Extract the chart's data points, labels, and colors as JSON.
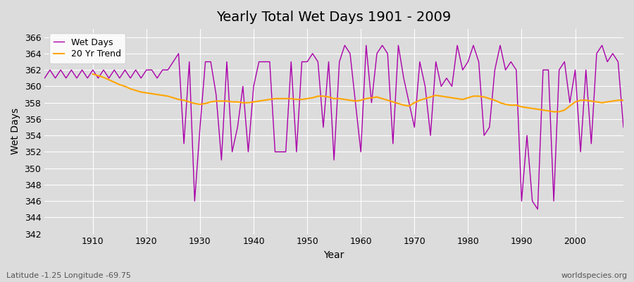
{
  "title": "Yearly Total Wet Days 1901 - 2009",
  "xlabel": "Year",
  "ylabel": "Wet Days",
  "subtitle_left": "Latitude -1.25 Longitude -69.75",
  "subtitle_right": "worldspecies.org",
  "ylim": [
    342,
    367
  ],
  "yticks": [
    342,
    344,
    346,
    348,
    350,
    352,
    354,
    356,
    358,
    360,
    362,
    364,
    366
  ],
  "bg_color": "#dcdcdc",
  "wet_days_color": "#aa00aa",
  "trend_color": "#ffa500",
  "legend_wet": "Wet Days",
  "legend_trend": "20 Yr Trend",
  "years": [
    1901,
    1902,
    1903,
    1904,
    1905,
    1906,
    1907,
    1908,
    1909,
    1910,
    1911,
    1912,
    1913,
    1914,
    1915,
    1916,
    1917,
    1918,
    1919,
    1920,
    1921,
    1922,
    1923,
    1924,
    1925,
    1926,
    1927,
    1928,
    1929,
    1930,
    1931,
    1932,
    1933,
    1934,
    1935,
    1936,
    1937,
    1938,
    1939,
    1940,
    1941,
    1942,
    1943,
    1944,
    1945,
    1946,
    1947,
    1948,
    1949,
    1950,
    1951,
    1952,
    1953,
    1954,
    1955,
    1956,
    1957,
    1958,
    1959,
    1960,
    1961,
    1962,
    1963,
    1964,
    1965,
    1966,
    1967,
    1968,
    1969,
    1970,
    1971,
    1972,
    1973,
    1974,
    1975,
    1976,
    1977,
    1978,
    1979,
    1980,
    1981,
    1982,
    1983,
    1984,
    1985,
    1986,
    1987,
    1988,
    1989,
    1990,
    1991,
    1992,
    1993,
    1994,
    1995,
    1996,
    1997,
    1998,
    1999,
    2000,
    2001,
    2002,
    2003,
    2004,
    2005,
    2006,
    2007,
    2008,
    2009
  ],
  "wet_days": [
    361,
    362,
    361,
    362,
    361,
    362,
    361,
    362,
    361,
    362,
    361,
    362,
    361,
    362,
    361,
    362,
    361,
    362,
    361,
    362,
    362,
    361,
    362,
    362,
    363,
    364,
    353,
    363,
    346,
    355,
    363,
    363,
    359,
    351,
    363,
    352,
    355,
    360,
    352,
    360,
    363,
    363,
    363,
    352,
    352,
    352,
    363,
    352,
    363,
    363,
    364,
    363,
    355,
    363,
    351,
    363,
    365,
    364,
    358,
    352,
    365,
    358,
    364,
    365,
    364,
    353,
    365,
    361,
    358,
    355,
    363,
    360,
    354,
    363,
    360,
    361,
    360,
    365,
    362,
    363,
    365,
    363,
    354,
    355,
    362,
    365,
    362,
    363,
    362,
    346,
    354,
    346,
    345,
    362,
    362,
    346,
    362,
    363,
    358,
    362,
    352,
    362,
    353,
    364,
    365,
    363,
    364,
    363,
    355
  ],
  "trend_years": [
    1910,
    1911,
    1912,
    1913,
    1914,
    1915,
    1916,
    1917,
    1918,
    1919,
    1920,
    1921,
    1922,
    1923,
    1924,
    1925,
    1926,
    1927,
    1928,
    1929,
    1930,
    1931,
    1932,
    1933,
    1934,
    1935,
    1936,
    1937,
    1938,
    1939,
    1940,
    1941,
    1942,
    1943,
    1944,
    1945,
    1946,
    1947,
    1948,
    1949,
    1950,
    1951,
    1952,
    1953,
    1954,
    1955,
    1956,
    1957,
    1958,
    1959,
    1960,
    1961,
    1962,
    1963,
    1964,
    1965,
    1966,
    1967,
    1968,
    1969,
    1970,
    1971,
    1972,
    1973,
    1974,
    1975,
    1976,
    1977,
    1978,
    1979,
    1980,
    1981,
    1982,
    1983,
    1984,
    1985,
    1986,
    1987,
    1988,
    1989,
    1990,
    1991,
    1992,
    1993,
    1994,
    1995,
    1996,
    1997,
    1998,
    1999,
    2000,
    2001,
    2002,
    2003,
    2004,
    2005,
    2006,
    2007,
    2008,
    2009
  ],
  "trend_values": [
    361.5,
    361.3,
    361.1,
    360.8,
    360.5,
    360.2,
    360.0,
    359.7,
    359.5,
    359.3,
    359.2,
    359.1,
    359.0,
    358.9,
    358.8,
    358.6,
    358.4,
    358.3,
    358.1,
    357.9,
    357.8,
    357.9,
    358.1,
    358.2,
    358.2,
    358.2,
    358.1,
    358.1,
    358.0,
    358.0,
    358.1,
    358.2,
    358.3,
    358.4,
    358.5,
    358.5,
    358.5,
    358.5,
    358.4,
    358.4,
    358.5,
    358.6,
    358.8,
    358.8,
    358.7,
    358.5,
    358.5,
    358.4,
    358.3,
    358.2,
    358.3,
    358.5,
    358.6,
    358.7,
    358.5,
    358.3,
    358.1,
    357.9,
    357.7,
    357.6,
    358.0,
    358.3,
    358.5,
    358.7,
    358.9,
    358.8,
    358.7,
    358.6,
    358.5,
    358.4,
    358.6,
    358.8,
    358.8,
    358.7,
    358.5,
    358.3,
    358.0,
    357.8,
    357.7,
    357.7,
    357.5,
    357.4,
    357.3,
    357.2,
    357.1,
    357.0,
    356.9,
    356.9,
    357.1,
    357.6,
    358.1,
    358.3,
    358.3,
    358.2,
    358.1,
    358.0,
    358.1,
    358.2,
    358.3,
    358.3
  ]
}
